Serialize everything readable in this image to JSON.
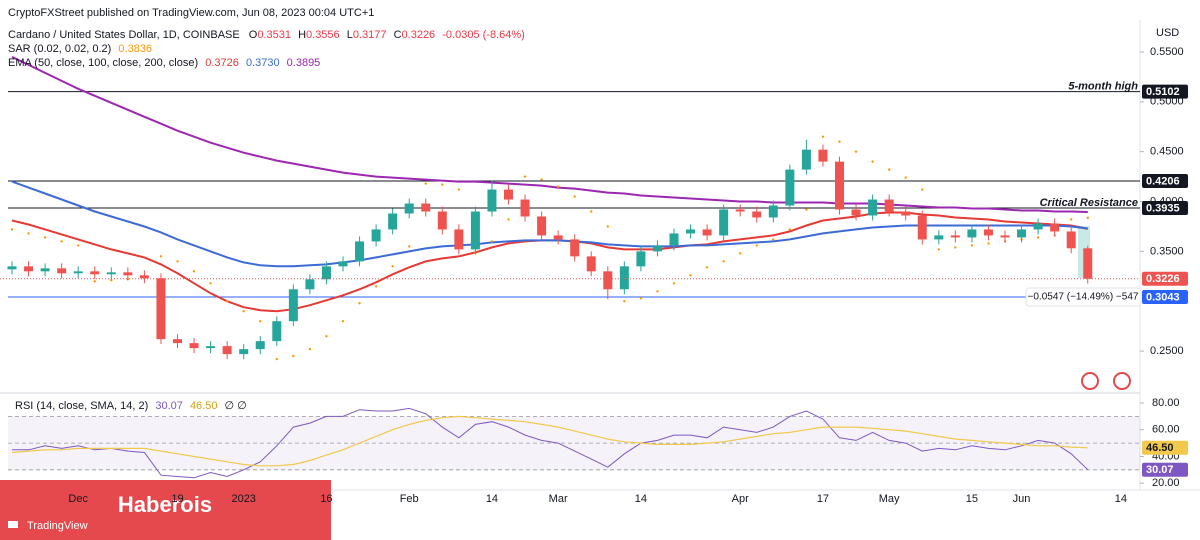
{
  "header": {
    "publisher": "CryptoFXStreet published on TradingView.com, Jun 08, 2023 00:04 UTC+1"
  },
  "chart_data": [
    {
      "type": "candlestick",
      "title": "Cardano / United States Dollar, 1D, COINBASE",
      "ohlc": [
        {
          "label": "O",
          "value": 0.3531
        },
        {
          "label": "H",
          "value": 0.3556
        },
        {
          "label": "L",
          "value": 0.3177
        },
        {
          "label": "C",
          "value": 0.3226
        }
      ],
      "change": "-0.0305 (-8.64%)",
      "currency": "USD",
      "categories": [
        null,
        null,
        null,
        null,
        "Dec",
        null,
        null,
        null,
        null,
        null,
        "19",
        null,
        null,
        null,
        "2023",
        null,
        null,
        null,
        null,
        "16",
        null,
        null,
        null,
        null,
        "Feb",
        null,
        null,
        null,
        null,
        "14",
        null,
        null,
        null,
        "Mar",
        null,
        null,
        null,
        null,
        "14",
        null,
        null,
        null,
        null,
        null,
        "Apr",
        null,
        null,
        null,
        null,
        "17",
        null,
        null,
        null,
        "May",
        null,
        null,
        null,
        null,
        "15",
        null,
        null,
        "Jun",
        null,
        null,
        null,
        null,
        null,
        "14"
      ],
      "open": [
        0.332,
        0.335,
        0.33,
        0.333,
        0.328,
        0.33,
        0.327,
        0.329,
        0.326,
        0.323,
        0.262,
        0.258,
        0.253,
        0.255,
        0.247,
        0.252,
        0.26,
        0.28,
        0.312,
        0.322,
        0.335,
        0.34,
        0.36,
        0.372,
        0.388,
        0.398,
        0.39,
        0.372,
        0.352,
        0.39,
        0.412,
        0.402,
        0.385,
        0.366,
        0.362,
        0.345,
        0.33,
        0.312,
        0.335,
        0.35,
        0.356,
        0.368,
        0.372,
        0.366,
        0.392,
        0.39,
        0.384,
        0.396,
        0.432,
        0.452,
        0.44,
        0.392,
        0.386,
        0.402,
        0.39,
        0.386,
        0.362,
        0.366,
        0.364,
        0.372,
        0.366,
        0.364,
        0.372,
        0.378,
        0.37,
        0.3531,
        null,
        null
      ],
      "high": [
        0.34,
        0.34,
        0.338,
        0.338,
        0.335,
        0.335,
        0.334,
        0.334,
        0.331,
        0.328,
        0.267,
        0.263,
        0.26,
        0.26,
        0.257,
        0.265,
        0.285,
        0.317,
        0.327,
        0.34,
        0.345,
        0.365,
        0.377,
        0.393,
        0.403,
        0.403,
        0.395,
        0.377,
        0.395,
        0.421,
        0.417,
        0.407,
        0.39,
        0.371,
        0.367,
        0.35,
        0.335,
        0.34,
        0.355,
        0.361,
        0.373,
        0.377,
        0.377,
        0.397,
        0.397,
        0.395,
        0.401,
        0.437,
        0.462,
        0.457,
        0.445,
        0.397,
        0.407,
        0.407,
        0.395,
        0.391,
        0.371,
        0.371,
        0.377,
        0.377,
        0.371,
        0.377,
        0.383,
        0.383,
        0.375,
        0.3556,
        null,
        null
      ],
      "low": [
        0.327,
        0.325,
        0.325,
        0.323,
        0.323,
        0.322,
        0.322,
        0.321,
        0.318,
        0.257,
        0.253,
        0.248,
        0.248,
        0.242,
        0.242,
        0.247,
        0.255,
        0.275,
        0.307,
        0.317,
        0.33,
        0.335,
        0.355,
        0.367,
        0.383,
        0.385,
        0.367,
        0.347,
        0.347,
        0.385,
        0.397,
        0.38,
        0.361,
        0.357,
        0.34,
        0.325,
        0.302,
        0.307,
        0.33,
        0.345,
        0.351,
        0.363,
        0.361,
        0.361,
        0.385,
        0.379,
        0.379,
        0.391,
        0.427,
        0.435,
        0.387,
        0.381,
        0.381,
        0.385,
        0.381,
        0.357,
        0.357,
        0.359,
        0.359,
        0.361,
        0.359,
        0.359,
        0.367,
        0.365,
        0.348,
        0.3177,
        null,
        null
      ],
      "close": [
        0.335,
        0.33,
        0.333,
        0.328,
        0.33,
        0.327,
        0.329,
        0.326,
        0.323,
        0.262,
        0.258,
        0.253,
        0.255,
        0.247,
        0.252,
        0.26,
        0.28,
        0.312,
        0.322,
        0.335,
        0.34,
        0.36,
        0.372,
        0.388,
        0.398,
        0.39,
        0.372,
        0.352,
        0.39,
        0.412,
        0.402,
        0.385,
        0.366,
        0.362,
        0.345,
        0.33,
        0.312,
        0.335,
        0.35,
        0.356,
        0.368,
        0.372,
        0.366,
        0.392,
        0.39,
        0.384,
        0.396,
        0.432,
        0.452,
        0.44,
        0.392,
        0.386,
        0.402,
        0.39,
        0.386,
        0.362,
        0.366,
        0.364,
        0.372,
        0.366,
        0.364,
        0.372,
        0.378,
        0.37,
        0.3531,
        0.3226,
        null,
        null
      ],
      "up_color": "#26a69a",
      "down_color": "#ef5350",
      "sar": {
        "name": "SAR (0.02, 0.02, 0.2)",
        "color": "#ff9800",
        "last_label": "0.3836",
        "values": [
          0.372,
          0.368,
          0.364,
          0.36,
          0.356,
          0.32,
          0.321,
          0.322,
          0.323,
          0.345,
          0.34,
          0.33,
          0.318,
          0.3,
          0.29,
          0.28,
          0.242,
          0.245,
          0.252,
          0.265,
          0.28,
          0.298,
          0.315,
          0.335,
          0.355,
          0.418,
          0.417,
          0.412,
          0.348,
          0.36,
          0.382,
          0.425,
          0.422,
          0.415,
          0.405,
          0.39,
          0.375,
          0.3,
          0.303,
          0.31,
          0.318,
          0.326,
          0.334,
          0.34,
          0.348,
          0.356,
          0.362,
          0.372,
          0.392,
          0.465,
          0.46,
          0.45,
          0.44,
          0.432,
          0.424,
          0.412,
          0.352,
          0.354,
          0.356,
          0.358,
          0.36,
          0.362,
          0.364,
          0.366,
          0.382,
          0.3836,
          null,
          null
        ]
      },
      "ema": {
        "name": "EMA (50, close, 100, close, 200, close)",
        "lines": [
          {
            "color": "#e53935",
            "last_label": "0.3726",
            "values": [
              0.381,
              0.377,
              0.372,
              0.367,
              0.362,
              0.357,
              0.352,
              0.348,
              0.344,
              0.337,
              0.328,
              0.318,
              0.308,
              0.3,
              0.294,
              0.291,
              0.29,
              0.292,
              0.296,
              0.301,
              0.306,
              0.312,
              0.319,
              0.327,
              0.334,
              0.34,
              0.343,
              0.345,
              0.349,
              0.354,
              0.358,
              0.36,
              0.361,
              0.361,
              0.36,
              0.358,
              0.354,
              0.352,
              0.352,
              0.352,
              0.354,
              0.356,
              0.357,
              0.36,
              0.362,
              0.364,
              0.366,
              0.37,
              0.376,
              0.381,
              0.383,
              0.385,
              0.388,
              0.389,
              0.389,
              0.387,
              0.386,
              0.384,
              0.383,
              0.382,
              0.38,
              0.379,
              0.378,
              0.377,
              0.376,
              0.3726,
              null,
              null
            ]
          },
          {
            "color": "#3d6bd6",
            "last_label": "0.3730",
            "values": [
              0.42,
              0.414,
              0.408,
              0.402,
              0.396,
              0.39,
              0.385,
              0.38,
              0.375,
              0.369,
              0.362,
              0.356,
              0.35,
              0.344,
              0.339,
              0.336,
              0.335,
              0.335,
              0.336,
              0.337,
              0.339,
              0.341,
              0.344,
              0.347,
              0.35,
              0.353,
              0.355,
              0.356,
              0.357,
              0.359,
              0.36,
              0.361,
              0.361,
              0.361,
              0.36,
              0.359,
              0.357,
              0.356,
              0.355,
              0.355,
              0.355,
              0.356,
              0.356,
              0.357,
              0.358,
              0.359,
              0.36,
              0.362,
              0.365,
              0.368,
              0.37,
              0.372,
              0.374,
              0.375,
              0.376,
              0.376,
              0.376,
              0.376,
              0.376,
              0.376,
              0.376,
              0.376,
              0.376,
              0.376,
              0.375,
              0.373,
              null,
              null
            ]
          },
          {
            "color": "#9c27b0",
            "last_label": "0.3895",
            "values": [
              0.545,
              0.537,
              0.529,
              0.521,
              0.513,
              0.506,
              0.499,
              0.492,
              0.485,
              0.478,
              0.471,
              0.465,
              0.459,
              0.454,
              0.449,
              0.445,
              0.441,
              0.438,
              0.435,
              0.432,
              0.429,
              0.427,
              0.425,
              0.424,
              0.423,
              0.422,
              0.421,
              0.42,
              0.42,
              0.419,
              0.418,
              0.417,
              0.416,
              0.414,
              0.413,
              0.411,
              0.409,
              0.408,
              0.406,
              0.405,
              0.404,
              0.403,
              0.402,
              0.401,
              0.4,
              0.4,
              0.399,
              0.399,
              0.399,
              0.399,
              0.398,
              0.398,
              0.398,
              0.397,
              0.396,
              0.395,
              0.394,
              0.394,
              0.393,
              0.393,
              0.392,
              0.391,
              0.391,
              0.39,
              0.39,
              0.3895,
              null,
              null
            ]
          }
        ]
      },
      "levels": [
        {
          "value": 0.5102,
          "label": "5-month high",
          "color": "#131722"
        },
        {
          "value": 0.4206,
          "color": "#131722"
        },
        {
          "value": 0.3935,
          "label": "Critical Resistance",
          "color": "#131722"
        },
        {
          "value": 0.3043,
          "color": "#2962ff"
        }
      ],
      "measure_label": "−0.0547 (−14.49%) −547",
      "ylim": [
        0.209,
        0.572
      ],
      "yticks": [
        {
          "value": 0.55,
          "label": "0.5500"
        },
        {
          "value": 0.5,
          "label": "0.5000"
        },
        {
          "value": 0.45,
          "label": "0.4500"
        },
        {
          "value": 0.4,
          "label": "0.4000"
        },
        {
          "value": 0.35,
          "label": "0.3500"
        },
        {
          "value": 0.25,
          "label": "0.2500"
        }
      ],
      "grid": false
    },
    {
      "type": "line",
      "title": "RSI (14, close, SMA, 14, 2)",
      "extra": "∅ ∅",
      "series": [
        {
          "color": "#7e57c2",
          "last_label": "30.07",
          "values": [
            45,
            45,
            48,
            46,
            48,
            45,
            46,
            44,
            43,
            26,
            25,
            24,
            28,
            25,
            30,
            36,
            48,
            62,
            65,
            70,
            70,
            75,
            74,
            74,
            76,
            72,
            62,
            54,
            64,
            66,
            62,
            56,
            52,
            50,
            44,
            38,
            32,
            42,
            50,
            52,
            56,
            56,
            54,
            62,
            60,
            58,
            62,
            70,
            74,
            68,
            54,
            52,
            58,
            52,
            50,
            44,
            46,
            45,
            48,
            46,
            45,
            48,
            52,
            50,
            42,
            30.07,
            null,
            null
          ]
        },
        {
          "color": "#f2c94c",
          "last_label": "46.50",
          "values": [
            43,
            44,
            45,
            45,
            46,
            46,
            46,
            46,
            46,
            44,
            42,
            40,
            38,
            36,
            34,
            33,
            33,
            34,
            37,
            41,
            45,
            50,
            55,
            60,
            64,
            67,
            69,
            70,
            69,
            68,
            67,
            66,
            64,
            62,
            59,
            56,
            53,
            51,
            50,
            49,
            49,
            49,
            50,
            51,
            53,
            55,
            57,
            58,
            60,
            62,
            62,
            62,
            61,
            60,
            59,
            57,
            55,
            53,
            52,
            51,
            50,
            49,
            48,
            48,
            47,
            46.5,
            null,
            null
          ]
        }
      ],
      "band": [
        30,
        70
      ],
      "midline": 50,
      "ylim": [
        14.9,
        86
      ],
      "yticks": [
        {
          "value": 80,
          "label": "80.00"
        },
        {
          "value": 60,
          "label": "60.00"
        },
        {
          "value": 40,
          "label": "40.00"
        },
        {
          "value": 20,
          "label": "20.00"
        }
      ],
      "grid": false
    }
  ],
  "footer": {
    "brand": "Haberois",
    "logo": "TradingView"
  }
}
